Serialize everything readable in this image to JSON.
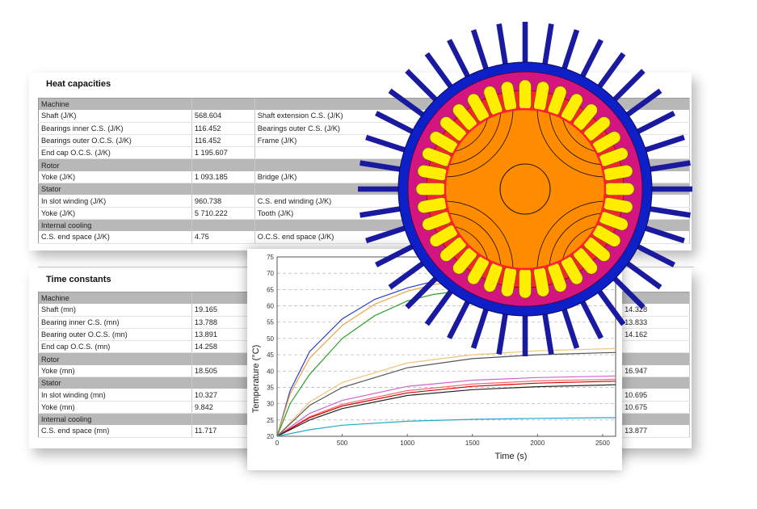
{
  "heat_capacities": {
    "title": "Heat capacities",
    "rows": [
      {
        "section": "Machine"
      },
      {
        "l1": "Shaft (J/K)",
        "v1": "568.604",
        "l2": "Shaft extension C.S. (J/K)"
      },
      {
        "l1": "Bearings inner C.S. (J/K)",
        "v1": "116.452",
        "l2": "Bearings outer C.S. (J/K)"
      },
      {
        "l1": "Bearings outer O.C.S. (J/K)",
        "v1": "116.452",
        "l2": "Frame (J/K)"
      },
      {
        "l1": "End cap O.C.S. (J/K)",
        "v1": "1 195.607",
        "l2": ""
      },
      {
        "section": "Rotor"
      },
      {
        "l1": "Yoke (J/K)",
        "v1": "1 093.185",
        "l2": "Bridge (J/K)"
      },
      {
        "section": "Stator"
      },
      {
        "l1": "In slot winding (J/K)",
        "v1": "960.738",
        "l2": "C.S. end winding (J/K)"
      },
      {
        "l1": "Yoke (J/K)",
        "v1": "5 710.222",
        "l2": "Tooth (J/K)"
      },
      {
        "section": "Internal cooling"
      },
      {
        "l1": "C.S. end space (J/K)",
        "v1": "4.75",
        "l2": "O.C.S. end space (J/K)"
      }
    ]
  },
  "time_constants": {
    "title": "Time constants",
    "rows": [
      {
        "section": "Machine"
      },
      {
        "l1": "Shaft (mn)",
        "v1": "19.165",
        "r": "14.328"
      },
      {
        "l1": "Bearing inner C.S. (mn)",
        "v1": "13.788",
        "r": "13.833"
      },
      {
        "l1": "Bearing outer O.C.S. (mn)",
        "v1": "13.891",
        "r": "14.162"
      },
      {
        "l1": "End cap O.C.S. (mn)",
        "v1": "14.258",
        "r": ""
      },
      {
        "section": "Rotor"
      },
      {
        "l1": "Yoke (mn)",
        "v1": "18.505",
        "r": "16.947"
      },
      {
        "section": "Stator"
      },
      {
        "l1": "In slot winding (mn)",
        "v1": "10.327",
        "r": "10.695"
      },
      {
        "l1": "Yoke (mn)",
        "v1": "9.842",
        "r": "10.675"
      },
      {
        "section": "Internal cooling"
      },
      {
        "l1": "C.S. end space (mn)",
        "v1": "11.717",
        "r": "13.877"
      }
    ]
  },
  "chart_data": {
    "type": "line",
    "title": "",
    "xlabel": "Time (s)",
    "ylabel": "Temperature (°C)",
    "xlim": [
      0,
      2600
    ],
    "ylim": [
      20,
      75
    ],
    "x_ticks": [
      0,
      500,
      1000,
      1500,
      2000,
      2500
    ],
    "y_ticks": [
      20,
      25,
      30,
      35,
      40,
      45,
      50,
      55,
      60,
      65,
      70,
      75
    ],
    "grid": true,
    "series": [
      {
        "color": "#2a3fcf",
        "x": [
          0,
          100,
          250,
          500,
          750,
          1000,
          1200,
          1500
        ],
        "y": [
          20,
          34,
          46,
          56,
          62,
          65.5,
          67.5,
          69
        ]
      },
      {
        "color": "#f0a040",
        "x": [
          0,
          100,
          250,
          500,
          750,
          1000,
          1200,
          1500
        ],
        "y": [
          20,
          33,
          44,
          54,
          60.5,
          64.5,
          66.5,
          68
        ]
      },
      {
        "color": "#2ca02c",
        "x": [
          0,
          100,
          250,
          500,
          750,
          1000,
          1200,
          1500
        ],
        "y": [
          20,
          30,
          39,
          50,
          57,
          61.5,
          63.5,
          65
        ]
      },
      {
        "color": "#f3c178",
        "x": [
          0,
          250,
          500,
          1000,
          1500,
          2000,
          2500,
          2600
        ],
        "y": [
          20,
          30.5,
          36.5,
          42.5,
          45,
          46.2,
          46.8,
          46.9
        ]
      },
      {
        "color": "#555555",
        "x": [
          0,
          250,
          500,
          1000,
          1500,
          2000,
          2500,
          2600
        ],
        "y": [
          20,
          29.5,
          35,
          41,
          43.8,
          45,
          45.6,
          45.7
        ]
      },
      {
        "color": "#cc66cc",
        "x": [
          0,
          250,
          500,
          1000,
          1500,
          2000,
          2500,
          2600
        ],
        "y": [
          20,
          27,
          31,
          35.3,
          37.2,
          38,
          38.4,
          38.5
        ]
      },
      {
        "color": "#ff6666",
        "x": [
          0,
          250,
          500,
          1000,
          1500,
          2000,
          2500,
          2600
        ],
        "y": [
          20,
          26,
          29.8,
          34,
          36,
          37,
          37.4,
          37.5
        ]
      },
      {
        "color": "#cc0000",
        "x": [
          0,
          250,
          500,
          1000,
          1500,
          2000,
          2500,
          2600
        ],
        "y": [
          20,
          25.7,
          29.3,
          33.3,
          35.3,
          36.3,
          36.8,
          36.9
        ]
      },
      {
        "color": "#222222",
        "x": [
          0,
          250,
          500,
          1000,
          1500,
          2000,
          2500,
          2600
        ],
        "y": [
          20,
          25,
          28.5,
          32.5,
          34.3,
          35.2,
          35.7,
          35.8
        ]
      },
      {
        "color": "#22aacc",
        "x": [
          0,
          250,
          500,
          1000,
          1500,
          2000,
          2500,
          2600
        ],
        "y": [
          20,
          22,
          23.4,
          24.6,
          25.2,
          25.5,
          25.7,
          25.7
        ]
      }
    ]
  },
  "motor_graphic": {
    "pin_color": "#1a1aa0",
    "frame_color": "#0d20c8",
    "yoke_color": "#d4157f",
    "rotor_color": "#ff8c00",
    "tooth_color": "#ff2030",
    "slot_color": "#ffee00"
  }
}
